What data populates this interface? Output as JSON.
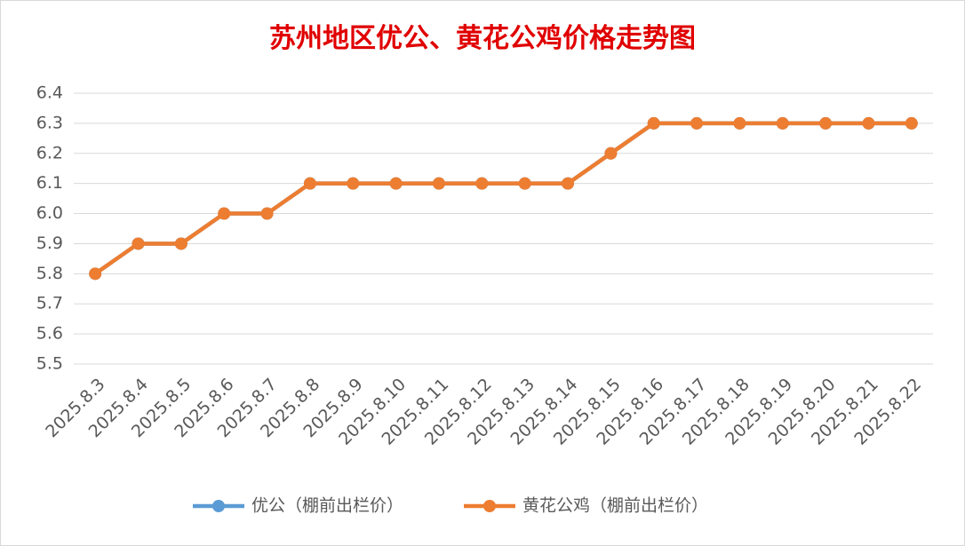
{
  "chart_data": {
    "type": "line",
    "title": "苏州地区优公、黄花公鸡价格走势图",
    "categories": [
      "2025.8.3",
      "2025.8.4",
      "2025.8.5",
      "2025.8.6",
      "2025.8.7",
      "2025.8.8",
      "2025.8.9",
      "2025.8.10",
      "2025.8.11",
      "2025.8.12",
      "2025.8.13",
      "2025.8.14",
      "2025.8.15",
      "2025.8.16",
      "2025.8.17",
      "2025.8.18",
      "2025.8.19",
      "2025.8.20",
      "2025.8.21",
      "2025.8.22"
    ],
    "series": [
      {
        "name": "优公（棚前出栏价）",
        "color": "#5b9bd5",
        "values": [
          5.8,
          5.9,
          5.9,
          6.0,
          6.0,
          6.1,
          6.1,
          6.1,
          6.1,
          6.1,
          6.1,
          6.1,
          6.2,
          6.3,
          6.3,
          6.3,
          6.3,
          6.3,
          6.3,
          6.3
        ]
      },
      {
        "name": "黄花公鸡（棚前出栏价）",
        "color": "#ed7d31",
        "values": [
          5.8,
          5.9,
          5.9,
          6.0,
          6.0,
          6.1,
          6.1,
          6.1,
          6.1,
          6.1,
          6.1,
          6.1,
          6.2,
          6.3,
          6.3,
          6.3,
          6.3,
          6.3,
          6.3,
          6.3
        ]
      }
    ],
    "ylim": [
      5.5,
      6.4
    ],
    "yticks": [
      5.5,
      5.6,
      5.7,
      5.8,
      5.9,
      {
        "value": 6,
        "label": "6.0"
      },
      6.1,
      6.2,
      6.3,
      6.4
    ],
    "grid": true,
    "legend": "bottom"
  }
}
